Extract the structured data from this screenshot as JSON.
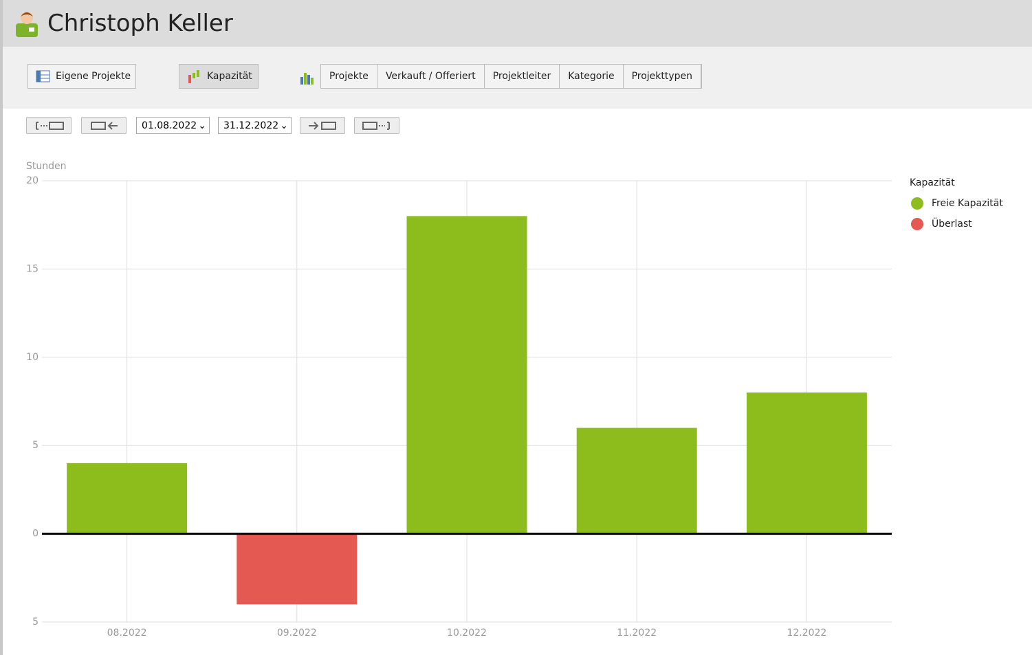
{
  "header": {
    "title": "Christoph Keller"
  },
  "toolbar": {
    "buttons": [
      "Eigene Projekte",
      "Kapazität"
    ],
    "tabs": [
      "Projekte",
      "Verkauft / Offeriert",
      "Projektleiter",
      "Kategorie",
      "Projekttypen"
    ]
  },
  "date_range": {
    "start": "01.08.2022",
    "end": "31.12.2022"
  },
  "chart_data": {
    "type": "bar",
    "y_label": "Stunden",
    "legend_title": "Kapazität",
    "categories": [
      "08.2022",
      "09.2022",
      "10.2022",
      "11.2022",
      "12.2022"
    ],
    "series": [
      {
        "name": "Freie Kapazität",
        "color": "#8cbd1c",
        "values": [
          4,
          null,
          18,
          6,
          8
        ]
      },
      {
        "name": "Überlast",
        "color": "#e45a53",
        "values": [
          null,
          -4,
          null,
          null,
          null
        ]
      }
    ],
    "ylim": [
      -5,
      20
    ],
    "yticks": [
      {
        "value": -5,
        "label": "5"
      },
      0,
      5,
      10,
      15,
      20
    ],
    "grid": true,
    "legend": "right"
  }
}
